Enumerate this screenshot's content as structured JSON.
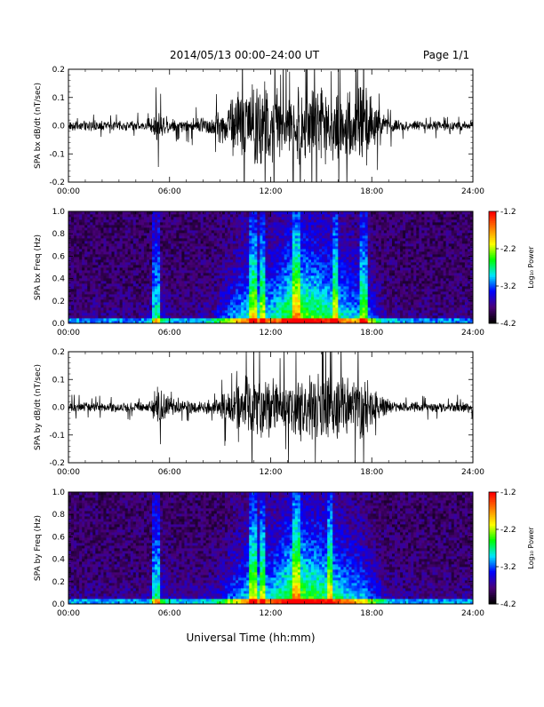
{
  "header": {
    "title": "2014/05/13  00:00–24:00 UT",
    "page_label": "Page 1/1"
  },
  "footer": {
    "xlabel": "Universal Time (hh:mm)"
  },
  "colors": {
    "trace": "#000000",
    "colorbar": [
      "#000000",
      "#4a007a",
      "#0000ff",
      "#00e5ff",
      "#00ff00",
      "#ffff00",
      "#ff8000",
      "#ff0000"
    ]
  },
  "chart_data": [
    {
      "type": "line",
      "ylabel": "SPA bx dB/dt (nT/sec)",
      "xlim": [
        0,
        24
      ],
      "ylim": [
        -0.2,
        0.2
      ],
      "xticks": [
        "00:00",
        "06:00",
        "12:00",
        "18:00",
        "24:00"
      ],
      "yticks": [
        "-0.2",
        "-0.1",
        "0.0",
        "0.1",
        "0.2"
      ],
      "envelope": {
        "x": [
          0,
          4.5,
          5.0,
          5.3,
          5.8,
          6.5,
          8.5,
          9.0,
          9.5,
          10.0,
          10.5,
          11.0,
          11.5,
          12.0,
          12.5,
          13.0,
          13.5,
          14.0,
          14.5,
          15.0,
          15.5,
          16.0,
          16.5,
          17.0,
          17.5,
          18.0,
          18.5,
          19.0,
          20.0,
          24.0
        ],
        "y": [
          0.02,
          0.02,
          0.04,
          0.07,
          0.04,
          0.025,
          0.04,
          0.07,
          0.1,
          0.15,
          0.18,
          0.2,
          0.2,
          0.18,
          0.13,
          0.12,
          0.16,
          0.19,
          0.17,
          0.16,
          0.15,
          0.14,
          0.13,
          0.15,
          0.18,
          0.12,
          0.05,
          0.035,
          0.02,
          0.02
        ]
      }
    },
    {
      "type": "heatmap",
      "ylabel": "SPA bx Freq (Hz)",
      "colorbar_label": "Log₁₀ Power",
      "xlim": [
        0,
        24
      ],
      "ylim": [
        0,
        1.0
      ],
      "xticks": [
        "00:00",
        "06:00",
        "12:00",
        "18:00",
        "24:00"
      ],
      "yticks": [
        "0.0",
        "0.2",
        "0.4",
        "0.6",
        "0.8",
        "1.0"
      ],
      "colorbar_range": [
        -4.2,
        -1.2
      ],
      "colorbar_ticks": [
        "-1.2",
        "-2.2",
        "-3.2",
        "-4.2"
      ],
      "activity": {
        "x": [
          0,
          4.5,
          5.0,
          5.3,
          5.8,
          6.5,
          8.5,
          9.0,
          9.5,
          10.0,
          10.5,
          11.0,
          11.5,
          12.0,
          12.5,
          13.0,
          13.5,
          14.0,
          14.5,
          15.0,
          15.5,
          16.0,
          16.5,
          17.0,
          17.5,
          18.0,
          18.5,
          19.0,
          20.0,
          24.0
        ],
        "y": [
          0.1,
          0.1,
          0.2,
          0.35,
          0.2,
          0.12,
          0.2,
          0.35,
          0.5,
          0.6,
          0.7,
          0.8,
          0.75,
          0.7,
          0.8,
          0.95,
          1.0,
          1.0,
          0.95,
          0.9,
          0.85,
          0.8,
          0.7,
          0.65,
          0.6,
          0.45,
          0.25,
          0.15,
          0.1,
          0.1
        ]
      },
      "bright_bands": [
        5.2,
        11.0,
        11.5,
        13.5,
        15.8,
        17.5
      ]
    },
    {
      "type": "line",
      "ylabel": "SPA by dB/dt (nT/sec)",
      "xlim": [
        0,
        24
      ],
      "ylim": [
        -0.2,
        0.2
      ],
      "xticks": [
        "00:00",
        "06:00",
        "12:00",
        "18:00",
        "24:00"
      ],
      "yticks": [
        "-0.2",
        "-0.1",
        "0.0",
        "0.1",
        "0.2"
      ],
      "envelope": {
        "x": [
          0,
          4.5,
          5.0,
          5.3,
          5.8,
          6.5,
          8.5,
          9.0,
          9.5,
          10.0,
          10.5,
          11.0,
          11.5,
          12.0,
          12.5,
          13.0,
          13.5,
          14.0,
          14.5,
          15.0,
          15.5,
          16.0,
          16.5,
          17.0,
          17.5,
          18.0,
          18.5,
          19.0,
          20.0,
          24.0
        ],
        "y": [
          0.02,
          0.02,
          0.05,
          0.09,
          0.05,
          0.025,
          0.03,
          0.05,
          0.07,
          0.09,
          0.12,
          0.14,
          0.13,
          0.12,
          0.1,
          0.11,
          0.13,
          0.15,
          0.13,
          0.14,
          0.12,
          0.13,
          0.11,
          0.13,
          0.15,
          0.1,
          0.05,
          0.03,
          0.02,
          0.02
        ]
      }
    },
    {
      "type": "heatmap",
      "ylabel": "SPA by Freq (Hz)",
      "colorbar_label": "Log₁₀ Power",
      "xlim": [
        0,
        24
      ],
      "ylim": [
        0,
        1.0
      ],
      "xticks": [
        "00:00",
        "06:00",
        "12:00",
        "18:00",
        "24:00"
      ],
      "yticks": [
        "0.0",
        "0.2",
        "0.4",
        "0.6",
        "0.8",
        "1.0"
      ],
      "colorbar_range": [
        -4.2,
        -1.2
      ],
      "colorbar_ticks": [
        "-1.2",
        "-2.2",
        "-3.2",
        "-4.2"
      ],
      "activity": {
        "x": [
          0,
          4.5,
          5.0,
          5.3,
          5.8,
          6.5,
          8.5,
          9.0,
          9.5,
          10.0,
          10.5,
          11.0,
          11.5,
          12.0,
          12.5,
          13.0,
          13.5,
          14.0,
          14.5,
          15.0,
          15.5,
          16.0,
          16.5,
          17.0,
          17.5,
          18.0,
          18.5,
          19.0,
          20.0,
          24.0
        ],
        "y": [
          0.12,
          0.12,
          0.25,
          0.4,
          0.25,
          0.15,
          0.2,
          0.3,
          0.45,
          0.55,
          0.65,
          0.8,
          0.75,
          0.7,
          0.8,
          0.95,
          1.0,
          1.0,
          0.95,
          0.9,
          0.85,
          0.8,
          0.7,
          0.65,
          0.6,
          0.45,
          0.3,
          0.18,
          0.12,
          0.12
        ]
      },
      "bright_bands": [
        5.2,
        11.0,
        11.5,
        13.5,
        15.5
      ]
    }
  ]
}
